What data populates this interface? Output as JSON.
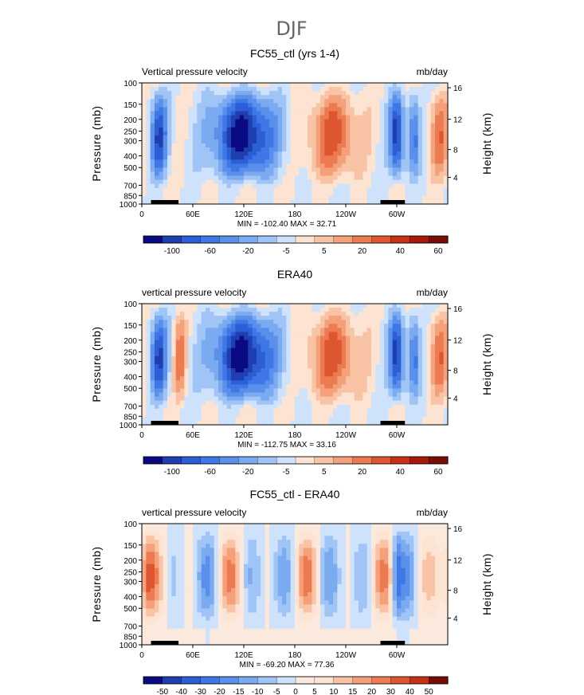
{
  "suptitle": "DJF",
  "palette": {
    "positive_land_color": "#000000",
    "axis_color": "#000000",
    "title_color": "#666666"
  },
  "chart_data": [
    {
      "type": "heatmap",
      "title": "FC55_ctl (yrs 1-4)",
      "left_label": "Vertical pressure velocity",
      "right_label": "mb/day",
      "ylabel": "Pressure (mb)",
      "ylabel_right": "Height (km)",
      "x_ticks": [
        "0",
        "60E",
        "120E",
        "180",
        "120W",
        "60W"
      ],
      "y_ticks": [
        "100",
        "150",
        "200",
        "250",
        "300",
        "400",
        "500",
        "700",
        "850",
        "1000"
      ],
      "y_ticks_right": [
        "16",
        "12",
        "8",
        "4"
      ],
      "min_max_label": "MIN = -102.40   MAX =  32.71",
      "colorbar_ticks": [
        "-100",
        "-60",
        "-20",
        "-5",
        "5",
        "20",
        "40",
        "60"
      ],
      "colorbar_colors": [
        "#0a0a82",
        "#1f3fb0",
        "#2c5ed6",
        "#3f78e6",
        "#5a90ec",
        "#7aaaf0",
        "#a0c4f5",
        "#cfe2fb",
        "#fde3d2",
        "#f9c3a6",
        "#f4a07a",
        "#ec7b52",
        "#de5630",
        "#c83018",
        "#a51a0c",
        "#7a0c06"
      ]
    },
    {
      "type": "heatmap",
      "title": "ERA40",
      "left_label": "vertical pressure velocity",
      "right_label": "mb/day",
      "ylabel": "Pressure (mb)",
      "ylabel_right": "Height (km)",
      "x_ticks": [
        "0",
        "60E",
        "120E",
        "180",
        "120W",
        "60W"
      ],
      "y_ticks": [
        "100",
        "150",
        "200",
        "250",
        "300",
        "400",
        "500",
        "700",
        "850",
        "1000"
      ],
      "y_ticks_right": [
        "16",
        "12",
        "8",
        "4"
      ],
      "min_max_label": "MIN = -112.75   MAX =  33.16",
      "colorbar_ticks": [
        "-100",
        "-60",
        "-20",
        "-5",
        "5",
        "20",
        "40",
        "60"
      ],
      "colorbar_colors": [
        "#0a0a82",
        "#1f3fb0",
        "#2c5ed6",
        "#3f78e6",
        "#5a90ec",
        "#7aaaf0",
        "#a0c4f5",
        "#cfe2fb",
        "#fde3d2",
        "#f9c3a6",
        "#f4a07a",
        "#ec7b52",
        "#de5630",
        "#c83018",
        "#a51a0c",
        "#7a0c06"
      ]
    },
    {
      "type": "heatmap",
      "title": "FC55_ctl - ERA40",
      "left_label": "vertical pressure velocity",
      "right_label": "mb/day",
      "ylabel": "Pressure (mb)",
      "ylabel_right": "Height (km)",
      "x_ticks": [
        "0",
        "60E",
        "120E",
        "180",
        "120W",
        "60W"
      ],
      "y_ticks": [
        "100",
        "150",
        "200",
        "250",
        "300",
        "400",
        "500",
        "700",
        "850",
        "1000"
      ],
      "y_ticks_right": [
        "16",
        "12",
        "8",
        "4"
      ],
      "min_max_label": "MIN = -69.20   MAX =  77.36",
      "colorbar_ticks": [
        "-50",
        "-40",
        "-30",
        "-20",
        "-15",
        "-10",
        "-5",
        "0",
        "5",
        "10",
        "15",
        "20",
        "30",
        "40",
        "50"
      ],
      "colorbar_colors": [
        "#0a0a82",
        "#1f3fb0",
        "#2c5ed6",
        "#3f78e6",
        "#5a90ec",
        "#7aaaf0",
        "#a0c4f5",
        "#cfe2fb",
        "#fbe9dd",
        "#fde3d2",
        "#f9c3a6",
        "#f4a07a",
        "#ec7b52",
        "#de5630",
        "#c83018",
        "#7a0c06"
      ]
    }
  ]
}
